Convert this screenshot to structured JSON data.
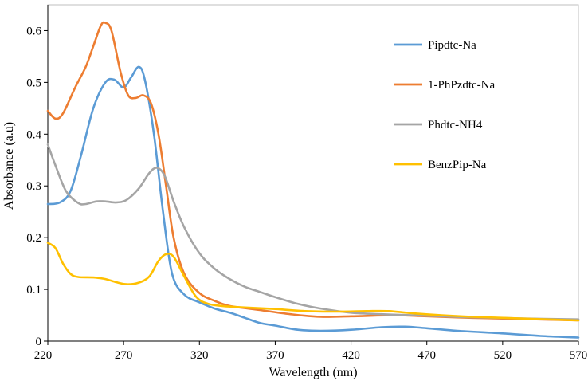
{
  "chart_data": {
    "type": "line",
    "title": "",
    "xlabel": "Wavelength (nm)",
    "ylabel": "Absorbance (a.u)",
    "xlim": [
      220,
      570
    ],
    "ylim": [
      0,
      0.65
    ],
    "xticks": [
      "220",
      "270",
      "320",
      "370",
      "420",
      "470",
      "520",
      "570"
    ],
    "yticks": [
      "0",
      "0.1",
      "0.2",
      "0.3",
      "0.4",
      "0.5",
      "0.6"
    ],
    "grid": false,
    "legend_position": "right",
    "series": [
      {
        "name": "Pipdtc-Na",
        "color": "#5B9BD5",
        "points": [
          [
            220,
            0.265
          ],
          [
            228,
            0.268
          ],
          [
            235,
            0.29
          ],
          [
            242,
            0.36
          ],
          [
            250,
            0.45
          ],
          [
            258,
            0.5
          ],
          [
            264,
            0.505
          ],
          [
            270,
            0.49
          ],
          [
            275,
            0.51
          ],
          [
            280,
            0.53
          ],
          [
            284,
            0.505
          ],
          [
            290,
            0.4
          ],
          [
            296,
            0.25
          ],
          [
            302,
            0.13
          ],
          [
            310,
            0.09
          ],
          [
            320,
            0.075
          ],
          [
            330,
            0.063
          ],
          [
            340,
            0.055
          ],
          [
            350,
            0.045
          ],
          [
            360,
            0.035
          ],
          [
            370,
            0.03
          ],
          [
            385,
            0.022
          ],
          [
            400,
            0.02
          ],
          [
            420,
            0.022
          ],
          [
            440,
            0.027
          ],
          [
            455,
            0.028
          ],
          [
            470,
            0.025
          ],
          [
            490,
            0.02
          ],
          [
            520,
            0.015
          ],
          [
            545,
            0.01
          ],
          [
            570,
            0.007
          ]
        ]
      },
      {
        "name": "1-PhPzdtc-Na",
        "color": "#ED7D31",
        "points": [
          [
            220,
            0.445
          ],
          [
            225,
            0.43
          ],
          [
            230,
            0.44
          ],
          [
            238,
            0.49
          ],
          [
            245,
            0.53
          ],
          [
            250,
            0.57
          ],
          [
            255,
            0.61
          ],
          [
            258,
            0.615
          ],
          [
            262,
            0.6
          ],
          [
            268,
            0.52
          ],
          [
            273,
            0.475
          ],
          [
            278,
            0.47
          ],
          [
            283,
            0.475
          ],
          [
            288,
            0.46
          ],
          [
            293,
            0.4
          ],
          [
            298,
            0.3
          ],
          [
            303,
            0.2
          ],
          [
            310,
            0.13
          ],
          [
            320,
            0.093
          ],
          [
            330,
            0.078
          ],
          [
            340,
            0.068
          ],
          [
            360,
            0.06
          ],
          [
            380,
            0.052
          ],
          [
            400,
            0.047
          ],
          [
            420,
            0.048
          ],
          [
            450,
            0.05
          ],
          [
            470,
            0.048
          ],
          [
            500,
            0.045
          ],
          [
            530,
            0.043
          ],
          [
            570,
            0.04
          ]
        ]
      },
      {
        "name": "Phdtc-NH4",
        "color": "#A5A5A5",
        "points": [
          [
            220,
            0.38
          ],
          [
            225,
            0.34
          ],
          [
            232,
            0.29
          ],
          [
            240,
            0.267
          ],
          [
            245,
            0.265
          ],
          [
            252,
            0.27
          ],
          [
            258,
            0.27
          ],
          [
            265,
            0.268
          ],
          [
            272,
            0.273
          ],
          [
            280,
            0.295
          ],
          [
            287,
            0.325
          ],
          [
            292,
            0.335
          ],
          [
            297,
            0.32
          ],
          [
            303,
            0.27
          ],
          [
            310,
            0.22
          ],
          [
            320,
            0.17
          ],
          [
            330,
            0.14
          ],
          [
            340,
            0.12
          ],
          [
            350,
            0.105
          ],
          [
            360,
            0.095
          ],
          [
            370,
            0.085
          ],
          [
            385,
            0.072
          ],
          [
            400,
            0.063
          ],
          [
            420,
            0.055
          ],
          [
            440,
            0.052
          ],
          [
            460,
            0.05
          ],
          [
            480,
            0.048
          ],
          [
            500,
            0.046
          ],
          [
            530,
            0.044
          ],
          [
            570,
            0.042
          ]
        ]
      },
      {
        "name": "BenzPip-Na",
        "color": "#FFC000",
        "points": [
          [
            220,
            0.19
          ],
          [
            225,
            0.18
          ],
          [
            230,
            0.15
          ],
          [
            235,
            0.13
          ],
          [
            240,
            0.124
          ],
          [
            250,
            0.123
          ],
          [
            258,
            0.12
          ],
          [
            265,
            0.114
          ],
          [
            272,
            0.11
          ],
          [
            280,
            0.113
          ],
          [
            287,
            0.125
          ],
          [
            293,
            0.155
          ],
          [
            298,
            0.168
          ],
          [
            303,
            0.163
          ],
          [
            310,
            0.125
          ],
          [
            318,
            0.085
          ],
          [
            326,
            0.072
          ],
          [
            335,
            0.068
          ],
          [
            350,
            0.065
          ],
          [
            370,
            0.062
          ],
          [
            390,
            0.058
          ],
          [
            410,
            0.057
          ],
          [
            430,
            0.058
          ],
          [
            445,
            0.058
          ],
          [
            460,
            0.054
          ],
          [
            480,
            0.05
          ],
          [
            500,
            0.047
          ],
          [
            530,
            0.044
          ],
          [
            570,
            0.04
          ]
        ]
      }
    ]
  }
}
